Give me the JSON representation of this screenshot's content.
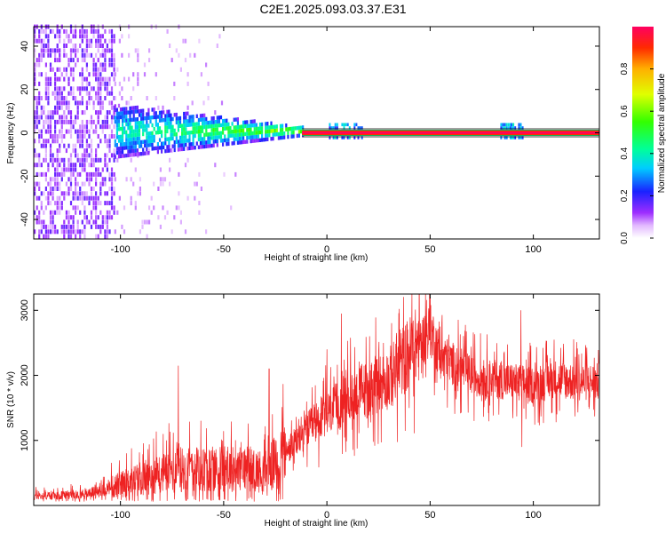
{
  "title": "C2E1.2025.093.03.37.E31",
  "chart_data": [
    {
      "type": "heatmap",
      "xlabel": "Height of straight line (km)",
      "ylabel": "Frequency (Hz)",
      "xlim": [
        -142,
        132
      ],
      "ylim": [
        -49,
        49
      ],
      "x_ticks": [
        -100,
        -50,
        0,
        50,
        100
      ],
      "y_ticks": [
        -40,
        -20,
        0,
        20,
        40
      ],
      "colorbar": {
        "label": "Normalized spectral amplitude",
        "range": [
          0,
          1
        ],
        "ticks": [
          0.0,
          0.2,
          0.4,
          0.6,
          0.8
        ],
        "colors": [
          "#ffffff",
          "#c56bff",
          "#7d00ff",
          "#0033ff",
          "#00d5ff",
          "#00ff4d",
          "#c8ff00",
          "#ffaa00",
          "#ff2600",
          "#ff0060"
        ]
      },
      "features": {
        "carrier_line_hz": 0,
        "noise_region_km": [
          -142,
          -103
        ],
        "spread_region_km": [
          -103,
          -12
        ],
        "narrow_line_region_km": [
          -12,
          132
        ]
      }
    },
    {
      "type": "line",
      "xlabel": "Height of straight line (km)",
      "ylabel": "SNR (10 * v/v)",
      "xlim": [
        -142,
        132
      ],
      "ylim": [
        0,
        3250
      ],
      "x_ticks": [
        -100,
        -50,
        0,
        50,
        100
      ],
      "y_ticks": [
        1000,
        2000,
        3000
      ],
      "color": "#ee2222",
      "x": [
        -140,
        -130,
        -120,
        -110,
        -100,
        -90,
        -80,
        -70,
        -60,
        -50,
        -40,
        -30,
        -20,
        -10,
        0,
        10,
        20,
        30,
        40,
        45,
        50,
        55,
        60,
        70,
        80,
        90,
        100,
        110,
        120,
        130
      ],
      "y": [
        150,
        150,
        180,
        220,
        320,
        420,
        500,
        560,
        560,
        560,
        550,
        520,
        800,
        1150,
        1400,
        1650,
        1800,
        1950,
        2350,
        2500,
        2700,
        2300,
        2200,
        2000,
        1950,
        1900,
        1850,
        1950,
        1900,
        1900
      ],
      "spikes": [
        {
          "x": 7,
          "y": 2950
        },
        {
          "x": 50,
          "y": 3200
        },
        {
          "x": 93,
          "y": 2100
        },
        {
          "x": 94,
          "y": 3000
        },
        {
          "x": 94.5,
          "y": 900
        },
        {
          "x": -72,
          "y": 2150
        },
        {
          "x": -28,
          "y": 2100
        },
        {
          "x": 0,
          "y": 2400
        }
      ]
    }
  ]
}
